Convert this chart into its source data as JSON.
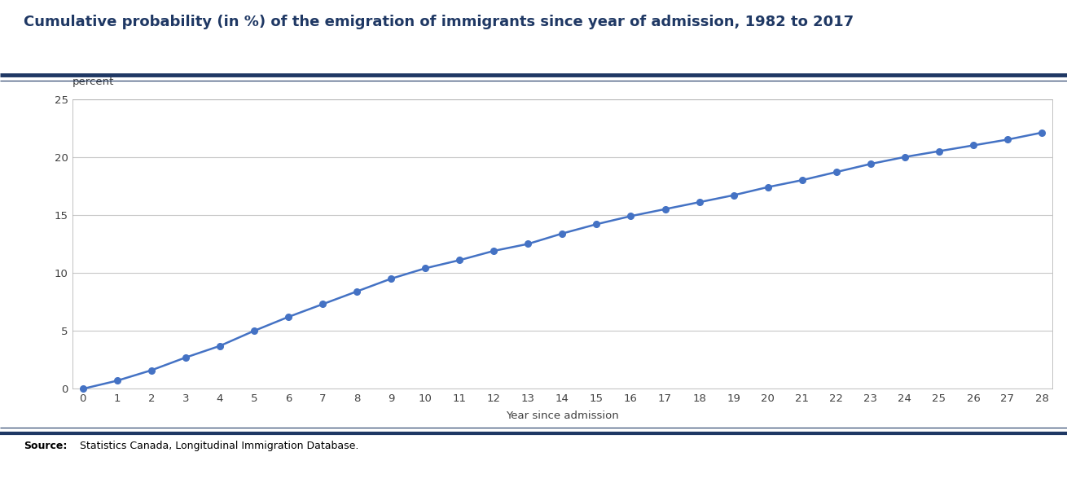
{
  "title": "Cumulative probability (in %) of the emigration of immigrants since year of admission, 1982 to 2017",
  "ylabel": "percent",
  "xlabel": "Year since admission",
  "source_label": "Source:",
  "source_text": " Statistics Canada, Longitudinal Immigration Database.",
  "line_color": "#4472C4",
  "marker_color": "#4472C4",
  "background_color": "#FFFFFF",
  "title_color": "#1F3864",
  "ylabel_color": "#404040",
  "xlabel_color": "#404040",
  "tick_color": "#404040",
  "source_color": "#000000",
  "grid_color": "#C8C8C8",
  "border_color": "#1F3864",
  "x_values": [
    0,
    1,
    2,
    3,
    4,
    5,
    6,
    7,
    8,
    9,
    10,
    11,
    12,
    13,
    14,
    15,
    16,
    17,
    18,
    19,
    20,
    21,
    22,
    23,
    24,
    25,
    26,
    27,
    28
  ],
  "y_values": [
    0.0,
    0.7,
    1.6,
    2.7,
    3.7,
    5.0,
    6.2,
    7.3,
    8.4,
    9.5,
    10.4,
    11.1,
    11.9,
    12.5,
    13.4,
    14.2,
    14.9,
    15.5,
    16.1,
    16.7,
    17.4,
    18.0,
    18.7,
    19.4,
    20.0,
    20.5,
    21.0,
    21.5,
    22.1
  ],
  "ylim": [
    0,
    25
  ],
  "xlim": [
    -0.3,
    28.3
  ],
  "yticks": [
    0,
    5,
    10,
    15,
    20,
    25
  ],
  "xticks": [
    0,
    1,
    2,
    3,
    4,
    5,
    6,
    7,
    8,
    9,
    10,
    11,
    12,
    13,
    14,
    15,
    16,
    17,
    18,
    19,
    20,
    21,
    22,
    23,
    24,
    25,
    26,
    27,
    28
  ],
  "title_fontsize": 13,
  "axis_label_fontsize": 9.5,
  "tick_fontsize": 9.5,
  "source_fontsize": 9,
  "line_width": 1.8,
  "marker_size": 5.5
}
